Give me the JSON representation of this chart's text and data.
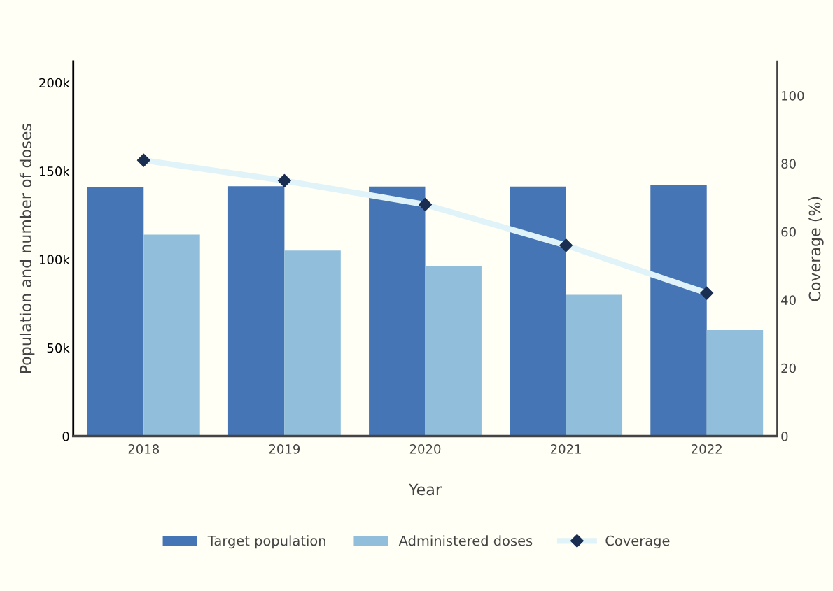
{
  "chart_data": {
    "type": "bar",
    "xlabel": "Year",
    "ylabel": "Population and number of doses",
    "y2label": "Coverage (%)",
    "categories": [
      "2018",
      "2019",
      "2020",
      "2021",
      "2022"
    ],
    "series": [
      {
        "name": "Target population",
        "color": "#4575b4",
        "values": [
          141000,
          141400,
          141200,
          141200,
          142000
        ]
      },
      {
        "name": "Administered doses",
        "color": "#91bfdb",
        "values": [
          114000,
          105000,
          96000,
          80000,
          60000
        ]
      },
      {
        "name": "Coverage",
        "type": "line",
        "axis": "y2",
        "color": "#e0f3f8",
        "colors": [
          "#1a2e52",
          "#1a2e52",
          "#1a2e52",
          "#1a2e52",
          "#1a2e52"
        ],
        "marker": "diamond",
        "values": [
          81,
          75,
          68,
          56,
          42
        ]
      }
    ],
    "ylim": [
      0,
      212000
    ],
    "yticks": [
      {
        "value": 0,
        "label": "0"
      },
      {
        "value": 50000,
        "label": "50k"
      },
      {
        "value": 100000,
        "label": "100k"
      },
      {
        "value": 150000,
        "label": "150k"
      },
      {
        "value": 200000,
        "label": "200k"
      }
    ],
    "y2lim": [
      0,
      110
    ],
    "y2ticks": [
      0,
      20,
      40,
      60,
      80,
      100
    ],
    "grid": false,
    "legend": "bottom"
  }
}
